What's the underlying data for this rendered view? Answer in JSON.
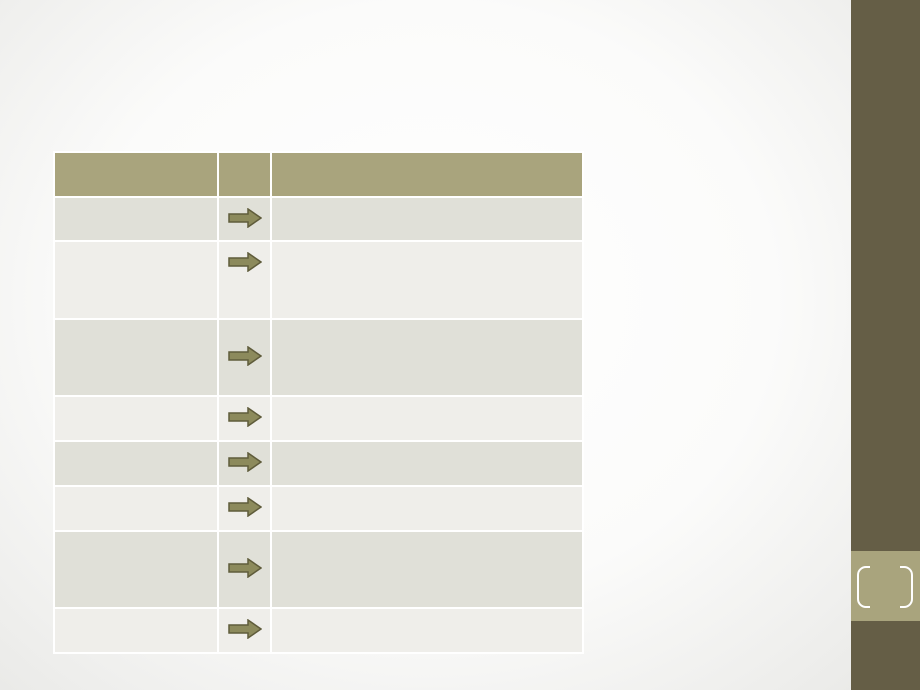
{
  "slide": {
    "title": "",
    "page_number": ""
  },
  "table": {
    "headers": [
      "",
      "",
      ""
    ],
    "rows": [
      {
        "left": "",
        "right": "",
        "arrow_icon": "right-arrow-icon"
      },
      {
        "left": "",
        "right": "",
        "arrow_icon": "right-arrow-icon"
      },
      {
        "left": "",
        "right": "",
        "arrow_icon": "right-arrow-icon"
      },
      {
        "left": "",
        "right": "",
        "arrow_icon": "right-arrow-icon"
      },
      {
        "left": "",
        "right": "",
        "arrow_icon": "right-arrow-icon"
      },
      {
        "left": "",
        "right": "",
        "arrow_icon": "right-arrow-icon"
      },
      {
        "left": "",
        "right": "",
        "arrow_icon": "right-arrow-icon"
      },
      {
        "left": "",
        "right": "",
        "arrow_icon": "right-arrow-icon"
      }
    ]
  },
  "colors": {
    "sidebar": "#655e46",
    "accent": "#a9a47d",
    "row_band_dark": "#e0e0d8",
    "row_band_light": "#efeeea",
    "arrow_fill": "#8c8a5c",
    "arrow_stroke": "#5f5c3b"
  }
}
